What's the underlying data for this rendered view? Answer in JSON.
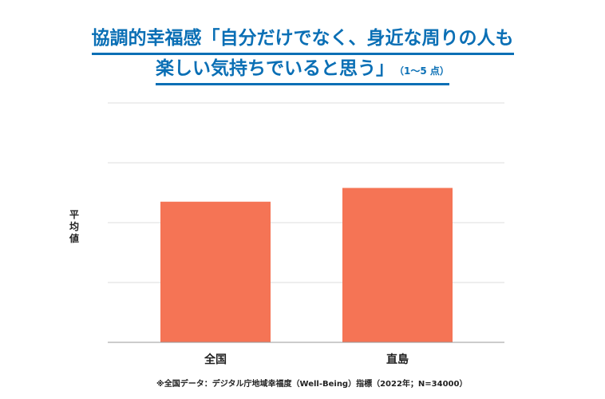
{
  "colors": {
    "title": "#0a6fb5",
    "bar": "#f57455",
    "grid": "#dddddd",
    "axis": "#999999"
  },
  "chart_data": {
    "type": "bar",
    "title_line1": "協調的幸福感「自分だけでなく、身近な周りの人も",
    "title_line2": "楽しい気持ちでいると思う」",
    "title_suffix": "（1～5 点）",
    "xlabel": "",
    "ylabel": "平均値",
    "categories": [
      "全国",
      "直島"
    ],
    "values": [
      3.35,
      3.58
    ],
    "ylim": [
      1,
      5
    ],
    "grid": true,
    "footnote": "※全国データ：デジタル庁地域幸福度（Well-Being）指標（2022年；N=34000）"
  }
}
